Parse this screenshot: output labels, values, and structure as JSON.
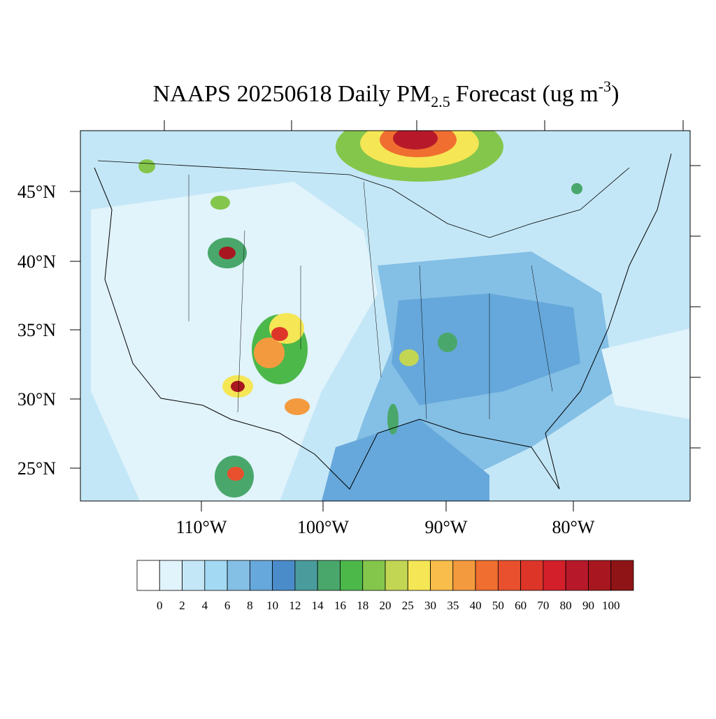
{
  "title": {
    "main": "NAAPS 20250618 Daily PM",
    "subscript": "2.5",
    "after": "Forecast (ug m",
    "superscript": "-3",
    "close": ")"
  },
  "map": {
    "lat_labels": [
      "45°N",
      "40°N",
      "35°N",
      "30°N",
      "25°N"
    ],
    "lon_labels": [
      "110°W",
      "100°W",
      "90°W",
      "80°W"
    ]
  },
  "colorbar": {
    "levels": [
      0,
      2,
      4,
      6,
      8,
      10,
      12,
      14,
      16,
      18,
      20,
      25,
      30,
      35,
      40,
      50,
      60,
      70,
      80,
      90,
      100
    ],
    "colors": [
      "#ffffff",
      "#e1f3fb",
      "#c4e7f7",
      "#a3d9f3",
      "#84bfe5",
      "#66a8db",
      "#4a8cc9",
      "#4a9b9c",
      "#4aa76c",
      "#4cb84a",
      "#84c64c",
      "#c3d654",
      "#f5e655",
      "#f8bd4a",
      "#f49a3e",
      "#f06e30",
      "#e8502e",
      "#de3529",
      "#d21f2a",
      "#b7192a",
      "#a8171f",
      "#8f1416"
    ]
  }
}
